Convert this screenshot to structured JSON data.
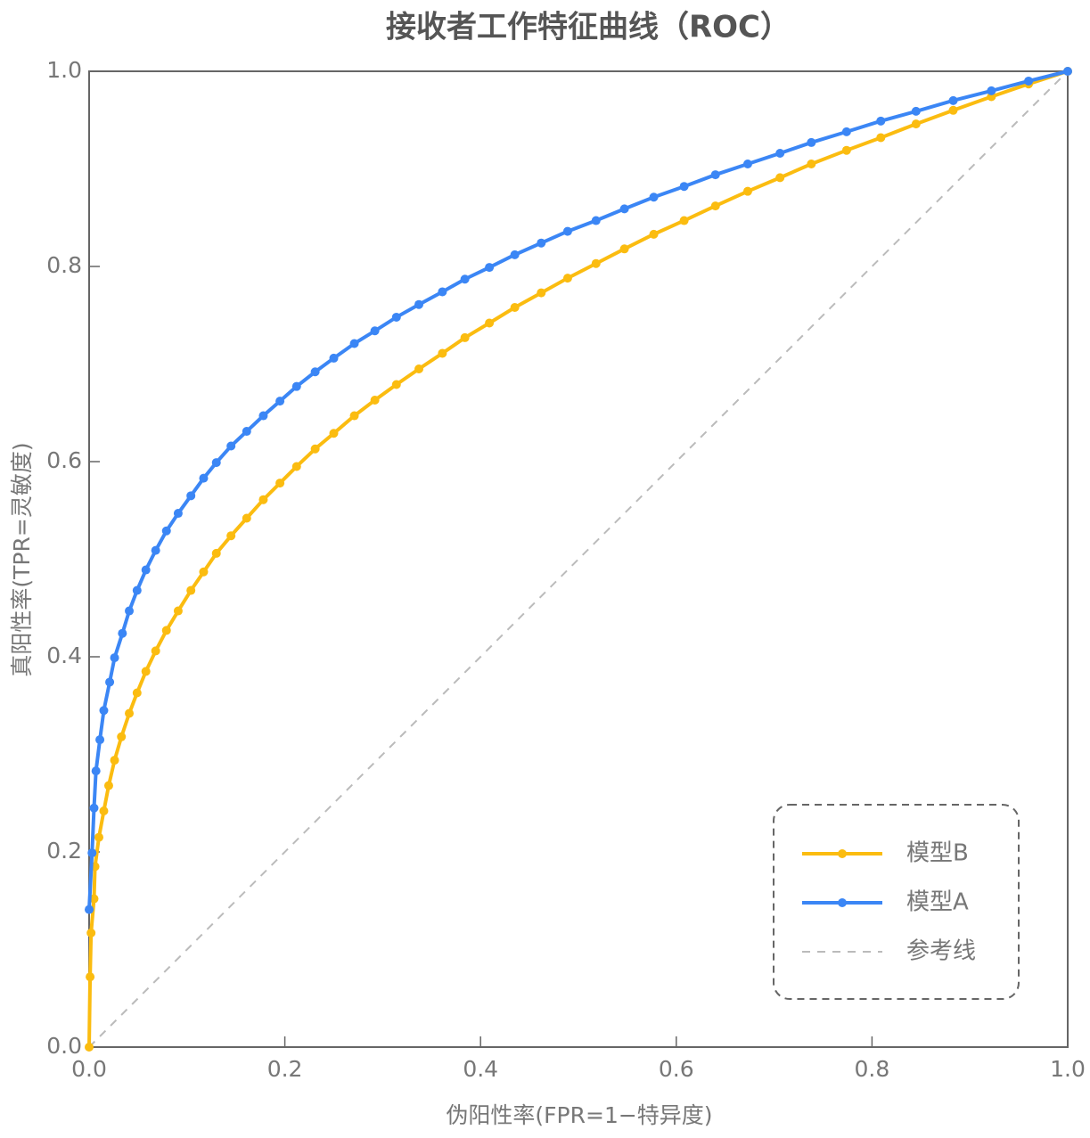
{
  "chart_data": {
    "type": "line",
    "title": "接收者工作特征曲线（ROC）",
    "x_label": "伪阳性率(FPR=1−特异度)",
    "y_label": "真阳性率(TPR=灵敏度)",
    "xlim": [
      0,
      1
    ],
    "ylim": [
      0,
      1
    ],
    "xticks": [
      {
        "value": 0,
        "label": "0.0"
      },
      {
        "value": 0.2,
        "label": "0.2"
      },
      {
        "value": 0.4,
        "label": "0.4"
      },
      {
        "value": 0.6,
        "label": "0.6"
      },
      {
        "value": 0.8,
        "label": "0.8"
      },
      {
        "value": 1,
        "label": "1.0"
      }
    ],
    "yticks": [
      {
        "value": 0,
        "label": "0.0"
      },
      {
        "value": 0.2,
        "label": "0.2"
      },
      {
        "value": 0.4,
        "label": "0.4"
      },
      {
        "value": 0.6,
        "label": "0.6"
      },
      {
        "value": 0.8,
        "label": "0.8"
      },
      {
        "value": 1,
        "label": "1.0"
      }
    ],
    "legend": "lower right",
    "series": [
      {
        "name": "模型B",
        "color": "#fbbc10",
        "markers": true,
        "x": [
          0,
          0.001,
          0.002,
          0.005,
          0.006,
          0.01,
          0.015,
          0.02,
          0.026,
          0.033,
          0.041,
          0.049,
          0.058,
          0.068,
          0.079,
          0.091,
          0.104,
          0.117,
          0.13,
          0.145,
          0.161,
          0.178,
          0.195,
          0.212,
          0.231,
          0.25,
          0.271,
          0.292,
          0.314,
          0.337,
          0.361,
          0.384,
          0.409,
          0.435,
          0.462,
          0.489,
          0.518,
          0.547,
          0.577,
          0.608,
          0.64,
          0.673,
          0.706,
          0.738,
          0.774,
          0.809,
          0.845,
          0.883,
          0.922,
          0.96,
          1
        ],
        "values": [
          0,
          0.072,
          0.117,
          0.152,
          0.185,
          0.215,
          0.242,
          0.268,
          0.294,
          0.318,
          0.342,
          0.363,
          0.385,
          0.406,
          0.427,
          0.447,
          0.468,
          0.487,
          0.506,
          0.524,
          0.542,
          0.561,
          0.578,
          0.595,
          0.613,
          0.629,
          0.647,
          0.663,
          0.679,
          0.695,
          0.711,
          0.727,
          0.742,
          0.758,
          0.773,
          0.788,
          0.803,
          0.818,
          0.833,
          0.847,
          0.862,
          0.877,
          0.891,
          0.905,
          0.919,
          0.932,
          0.946,
          0.96,
          0.974,
          0.987,
          1
        ]
      },
      {
        "name": "模型A",
        "color": "#3b86f5",
        "markers": true,
        "x": [
          0,
          0.003,
          0.005,
          0.007,
          0.011,
          0.015,
          0.021,
          0.026,
          0.034,
          0.041,
          0.049,
          0.058,
          0.068,
          0.079,
          0.091,
          0.104,
          0.117,
          0.13,
          0.145,
          0.161,
          0.178,
          0.195,
          0.212,
          0.231,
          0.25,
          0.271,
          0.292,
          0.314,
          0.337,
          0.361,
          0.384,
          0.409,
          0.435,
          0.462,
          0.489,
          0.518,
          0.547,
          0.577,
          0.608,
          0.64,
          0.673,
          0.706,
          0.738,
          0.774,
          0.809,
          0.845,
          0.883,
          0.922,
          0.96,
          1
        ],
        "values": [
          0.141,
          0.199,
          0.245,
          0.283,
          0.315,
          0.345,
          0.374,
          0.399,
          0.424,
          0.447,
          0.468,
          0.489,
          0.509,
          0.529,
          0.547,
          0.565,
          0.583,
          0.599,
          0.616,
          0.631,
          0.647,
          0.662,
          0.677,
          0.692,
          0.706,
          0.721,
          0.734,
          0.748,
          0.761,
          0.774,
          0.787,
          0.799,
          0.812,
          0.824,
          0.836,
          0.847,
          0.859,
          0.871,
          0.882,
          0.894,
          0.905,
          0.916,
          0.927,
          0.938,
          0.949,
          0.959,
          0.97,
          0.98,
          0.99,
          1
        ]
      },
      {
        "name": "参考线",
        "color": "#bbbbbb",
        "markers": false,
        "dash": true,
        "x": [
          0,
          1
        ],
        "values": [
          0,
          1
        ]
      }
    ]
  }
}
